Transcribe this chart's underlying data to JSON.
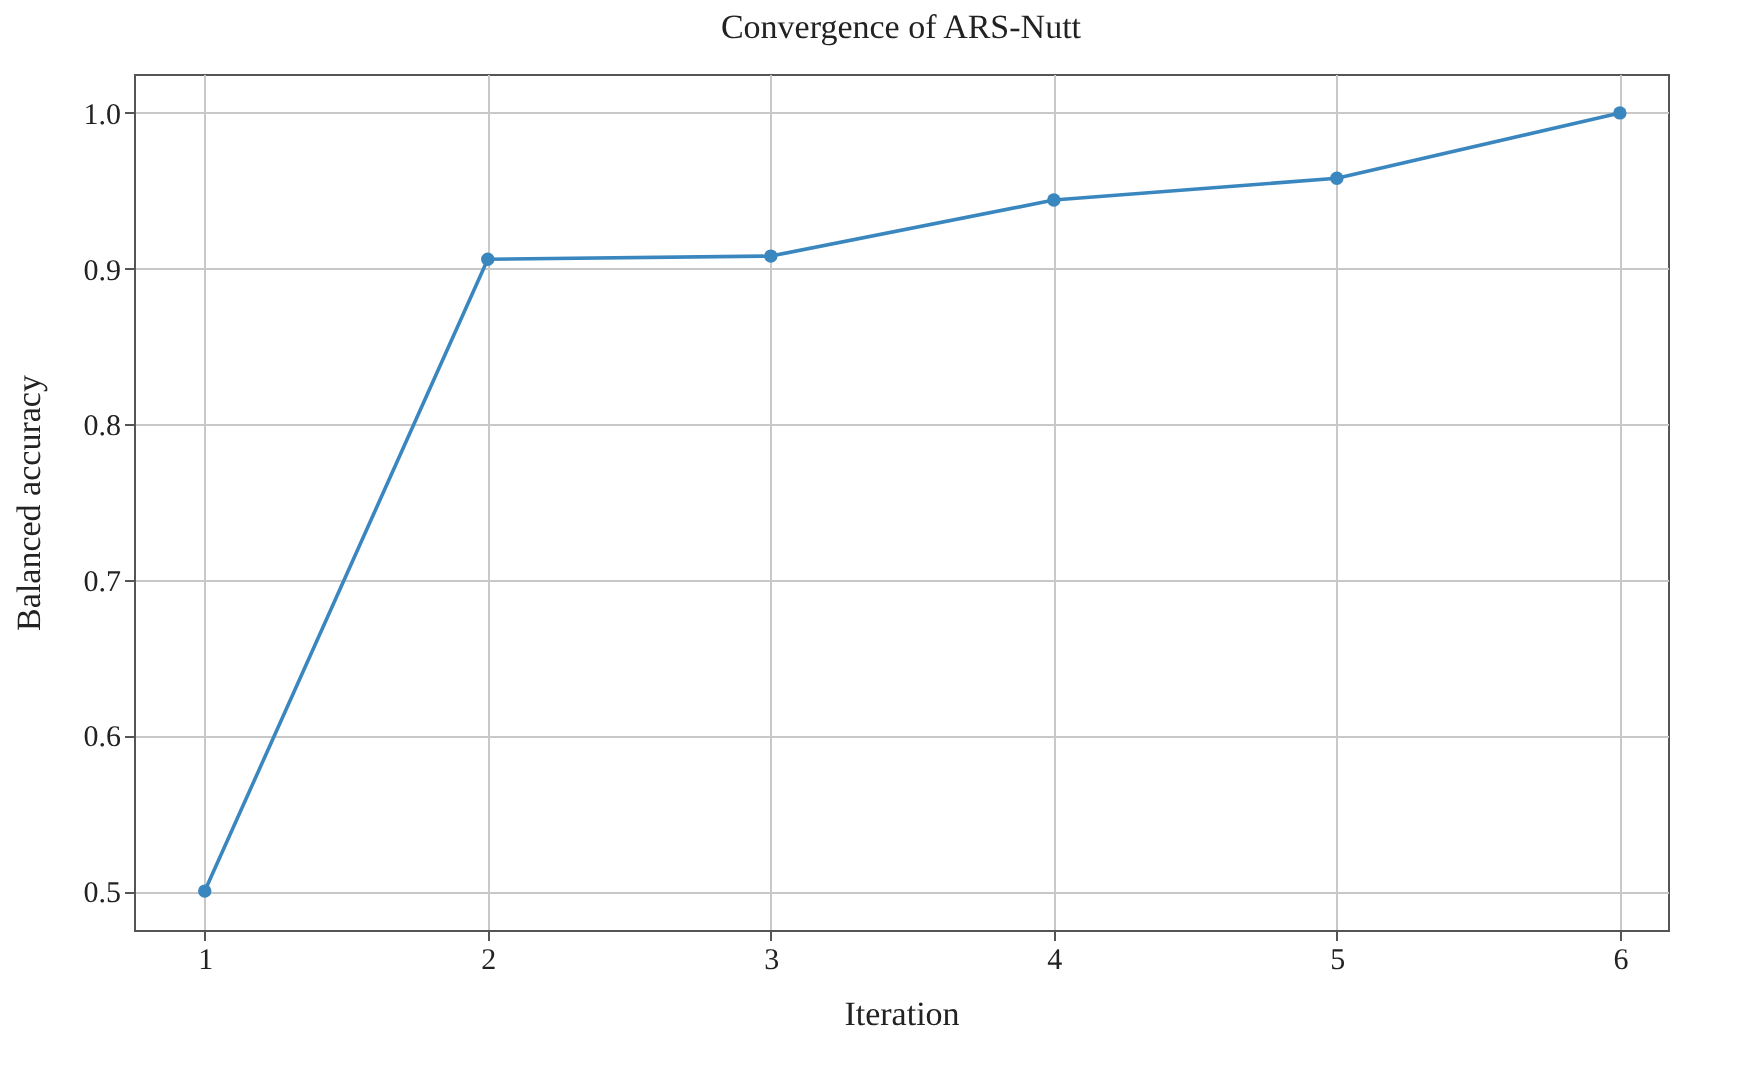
{
  "chart_data": {
    "type": "line",
    "title": "Convergence of ARS-Nutt",
    "xlabel": "Iteration",
    "ylabel": "Balanced accuracy",
    "x": [
      1,
      2,
      3,
      4,
      5,
      6
    ],
    "series": [
      {
        "color": "#3a86bf",
        "values": [
          0.5,
          0.906,
          0.908,
          0.944,
          0.958,
          1.0
        ]
      }
    ],
    "xlim": [
      0.75,
      6.17
    ],
    "xticks": [
      1,
      2,
      3,
      4,
      5,
      6
    ],
    "ylim": [
      0.475,
      1.025
    ],
    "yticks": [
      0.5,
      0.6,
      0.7,
      0.8,
      0.9,
      {
        "value": 1,
        "label": "1.0"
      }
    ],
    "grid": true,
    "marker": "circle",
    "line_style": "solid"
  }
}
